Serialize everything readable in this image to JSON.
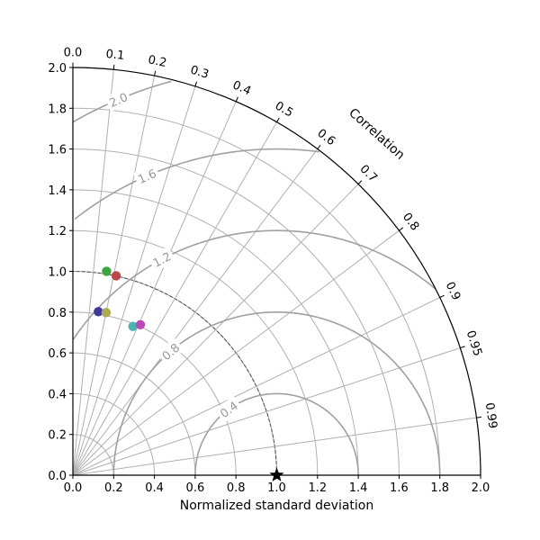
{
  "chart_data": {
    "type": "scatter",
    "subtype": "taylor-diagram",
    "xlabel": "Normalized standard deviation",
    "angular_axis_label": "Correlation",
    "std_range": [
      0,
      2.0
    ],
    "std_ticks": [
      "0.0",
      "0.2",
      "0.4",
      "0.6",
      "0.8",
      "1.0",
      "1.2",
      "1.4",
      "1.6",
      "1.8",
      "2.0"
    ],
    "correlation_ticks": [
      {
        "value": 0.0,
        "label": "0.0"
      },
      {
        "value": 0.1,
        "label": "0.1"
      },
      {
        "value": 0.2,
        "label": "0.2"
      },
      {
        "value": 0.3,
        "label": "0.3"
      },
      {
        "value": 0.4,
        "label": "0.4"
      },
      {
        "value": 0.5,
        "label": "0.5"
      },
      {
        "value": 0.6,
        "label": "0.6"
      },
      {
        "value": 0.7,
        "label": "0.7"
      },
      {
        "value": 0.8,
        "label": "0.8"
      },
      {
        "value": 0.9,
        "label": "0.9"
      },
      {
        "value": 0.95,
        "label": "0.95"
      },
      {
        "value": 0.99,
        "label": "0.99"
      }
    ],
    "std_arcs": [
      0.2,
      0.4,
      0.6,
      0.8,
      1.0,
      1.2,
      1.4,
      1.6,
      1.8
    ],
    "rms_contours": [
      {
        "value": 0.4,
        "label": "0.4"
      },
      {
        "value": 0.8,
        "label": "0.8"
      },
      {
        "value": 1.2,
        "label": "1.2"
      },
      {
        "value": 1.6,
        "label": "1.6"
      },
      {
        "value": 2.0,
        "label": "2.0"
      }
    ],
    "reference": {
      "std": 1.0,
      "correlation": 1.0,
      "marker": "star"
    },
    "reference_std_arc": 1.0,
    "points": [
      {
        "std": 1.014,
        "correlation": 0.163,
        "color": "#3fa33f"
      },
      {
        "std": 1.001,
        "correlation": 0.212,
        "color": "#b94a48"
      },
      {
        "std": 0.812,
        "correlation": 0.154,
        "color": "#3a3a9c"
      },
      {
        "std": 0.814,
        "correlation": 0.2,
        "color": "#aaaa50"
      },
      {
        "std": 0.787,
        "correlation": 0.374,
        "color": "#4ab5b0"
      },
      {
        "std": 0.809,
        "correlation": 0.409,
        "color": "#b94ab9"
      }
    ],
    "colors": {
      "grid": "#b0b0b0",
      "rms": "#a0a0a0",
      "axis": "#000000"
    }
  }
}
